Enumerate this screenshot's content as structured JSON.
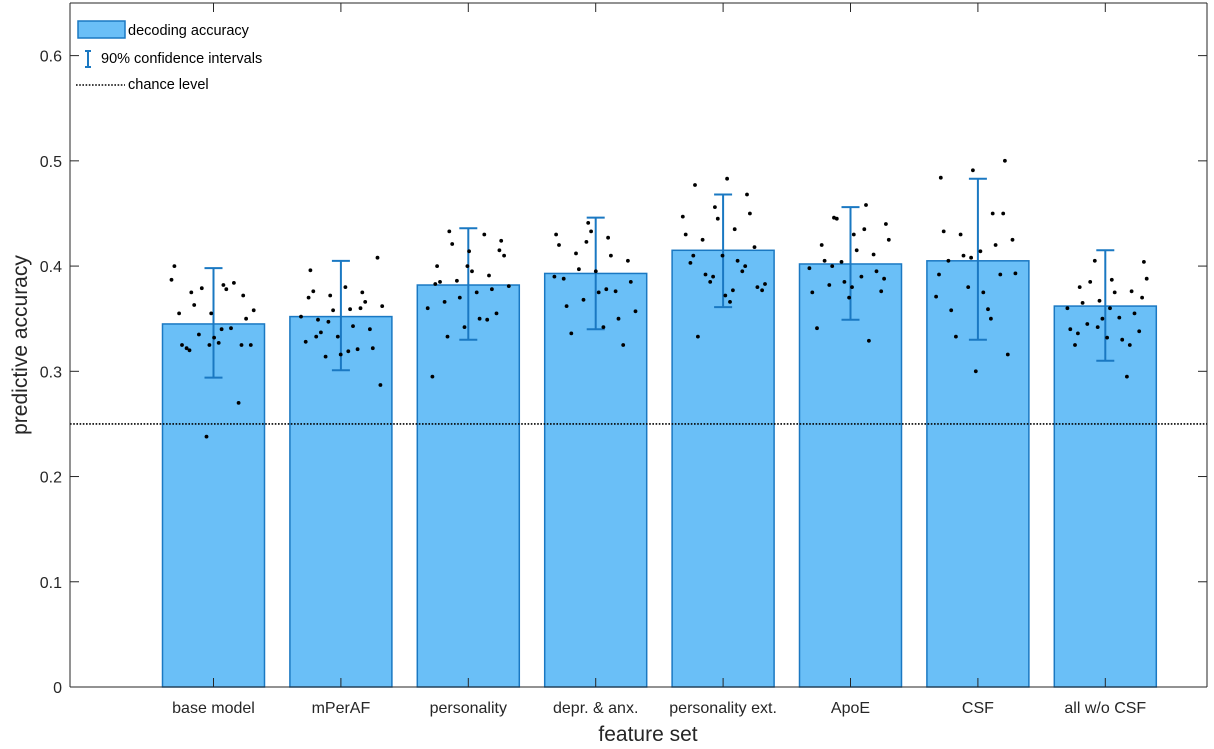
{
  "chart_data": {
    "type": "bar",
    "xlabel": "feature set",
    "ylabel": "predictive accuracy",
    "ylim": [
      0,
      0.65
    ],
    "yticks": [
      0,
      0.1,
      0.2,
      0.3,
      0.4,
      0.5,
      0.6
    ],
    "ytick_labels": [
      "0",
      "0.1",
      "0.2",
      "0.3",
      "0.4",
      "0.5",
      "0.6"
    ],
    "categories": [
      "base model",
      "mPerAF",
      "personality",
      "depr. & anx.",
      "personality ext.",
      "ApoE",
      "CSF",
      "all w/o CSF"
    ],
    "values": [
      0.345,
      0.352,
      0.382,
      0.393,
      0.415,
      0.402,
      0.405,
      0.362
    ],
    "ci_lower": [
      0.294,
      0.301,
      0.33,
      0.34,
      0.361,
      0.349,
      0.33,
      0.31
    ],
    "ci_upper": [
      0.398,
      0.405,
      0.436,
      0.446,
      0.468,
      0.456,
      0.483,
      0.415
    ],
    "chance_level": 0.25,
    "legend": {
      "position": "top-left",
      "entries": [
        "decoding accuracy",
        "90% confidence intervals",
        "chance level"
      ]
    },
    "colors": {
      "bar_fill": "#6abff7",
      "bar_edge": "#1a78c2",
      "errorbar": "#1a78c2",
      "points": "#000000",
      "chance": "#000000"
    },
    "points": [
      [
        0.387,
        0.382,
        0.375,
        0.372,
        0.355,
        0.355,
        0.341,
        0.335,
        0.325,
        0.327,
        0.322,
        0.27,
        0.238,
        0.4,
        0.378,
        0.363,
        0.35,
        0.332,
        0.325,
        0.384,
        0.379,
        0.358,
        0.34,
        0.32,
        0.325,
        0.325
      ],
      [
        0.396,
        0.375,
        0.372,
        0.362,
        0.359,
        0.349,
        0.34,
        0.333,
        0.328,
        0.321,
        0.314,
        0.408,
        0.38,
        0.376,
        0.366,
        0.358,
        0.352,
        0.343,
        0.337,
        0.322,
        0.316,
        0.37,
        0.36,
        0.347,
        0.287,
        0.319,
        0.333
      ],
      [
        0.433,
        0.424,
        0.414,
        0.4,
        0.391,
        0.386,
        0.381,
        0.375,
        0.366,
        0.355,
        0.342,
        0.295,
        0.43,
        0.421,
        0.41,
        0.395,
        0.385,
        0.378,
        0.37,
        0.36,
        0.35,
        0.333,
        0.415,
        0.4,
        0.383,
        0.349
      ],
      [
        0.441,
        0.43,
        0.427,
        0.412,
        0.405,
        0.395,
        0.388,
        0.376,
        0.368,
        0.357,
        0.342,
        0.336,
        0.325,
        0.433,
        0.42,
        0.41,
        0.397,
        0.385,
        0.375,
        0.362,
        0.35,
        0.423,
        0.39,
        0.378
      ],
      [
        0.483,
        0.477,
        0.468,
        0.456,
        0.447,
        0.435,
        0.425,
        0.418,
        0.41,
        0.403,
        0.395,
        0.385,
        0.377,
        0.366,
        0.333,
        0.45,
        0.445,
        0.43,
        0.405,
        0.392,
        0.38,
        0.372,
        0.41,
        0.4,
        0.39,
        0.383,
        0.377
      ],
      [
        0.458,
        0.446,
        0.44,
        0.43,
        0.42,
        0.411,
        0.404,
        0.398,
        0.39,
        0.382,
        0.376,
        0.37,
        0.341,
        0.329,
        0.445,
        0.425,
        0.415,
        0.405,
        0.395,
        0.385,
        0.375,
        0.435,
        0.4,
        0.388,
        0.38
      ],
      [
        0.5,
        0.491,
        0.484,
        0.45,
        0.43,
        0.425,
        0.414,
        0.405,
        0.392,
        0.38,
        0.371,
        0.359,
        0.333,
        0.316,
        0.3,
        0.433,
        0.42,
        0.41,
        0.393,
        0.375,
        0.358,
        0.45,
        0.408,
        0.392,
        0.35
      ],
      [
        0.404,
        0.387,
        0.38,
        0.376,
        0.367,
        0.36,
        0.351,
        0.345,
        0.338,
        0.332,
        0.325,
        0.295,
        0.405,
        0.388,
        0.375,
        0.365,
        0.355,
        0.35,
        0.34,
        0.33,
        0.385,
        0.37,
        0.36,
        0.336,
        0.325,
        0.342
      ]
    ]
  }
}
